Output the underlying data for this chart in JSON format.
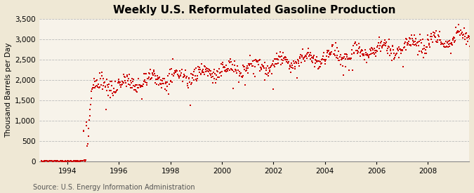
{
  "title": "Weekly U.S. Reformulated Gasoline Production",
  "ylabel": "Thousand Barrels per Day",
  "source": "Source: U.S. Energy Information Administration",
  "background_color": "#EFE8D5",
  "plot_bg_color": "#F7F3EA",
  "dot_color": "#CC0000",
  "ylim": [
    0,
    3500
  ],
  "yticks": [
    0,
    500,
    1000,
    1500,
    2000,
    2500,
    3000,
    3500
  ],
  "xtick_years": [
    1994,
    1996,
    1998,
    2000,
    2002,
    2004,
    2006,
    2008
  ],
  "xlim_start": 1992.9,
  "xlim_end": 2009.6,
  "title_fontsize": 11,
  "label_fontsize": 7.5,
  "source_fontsize": 7
}
